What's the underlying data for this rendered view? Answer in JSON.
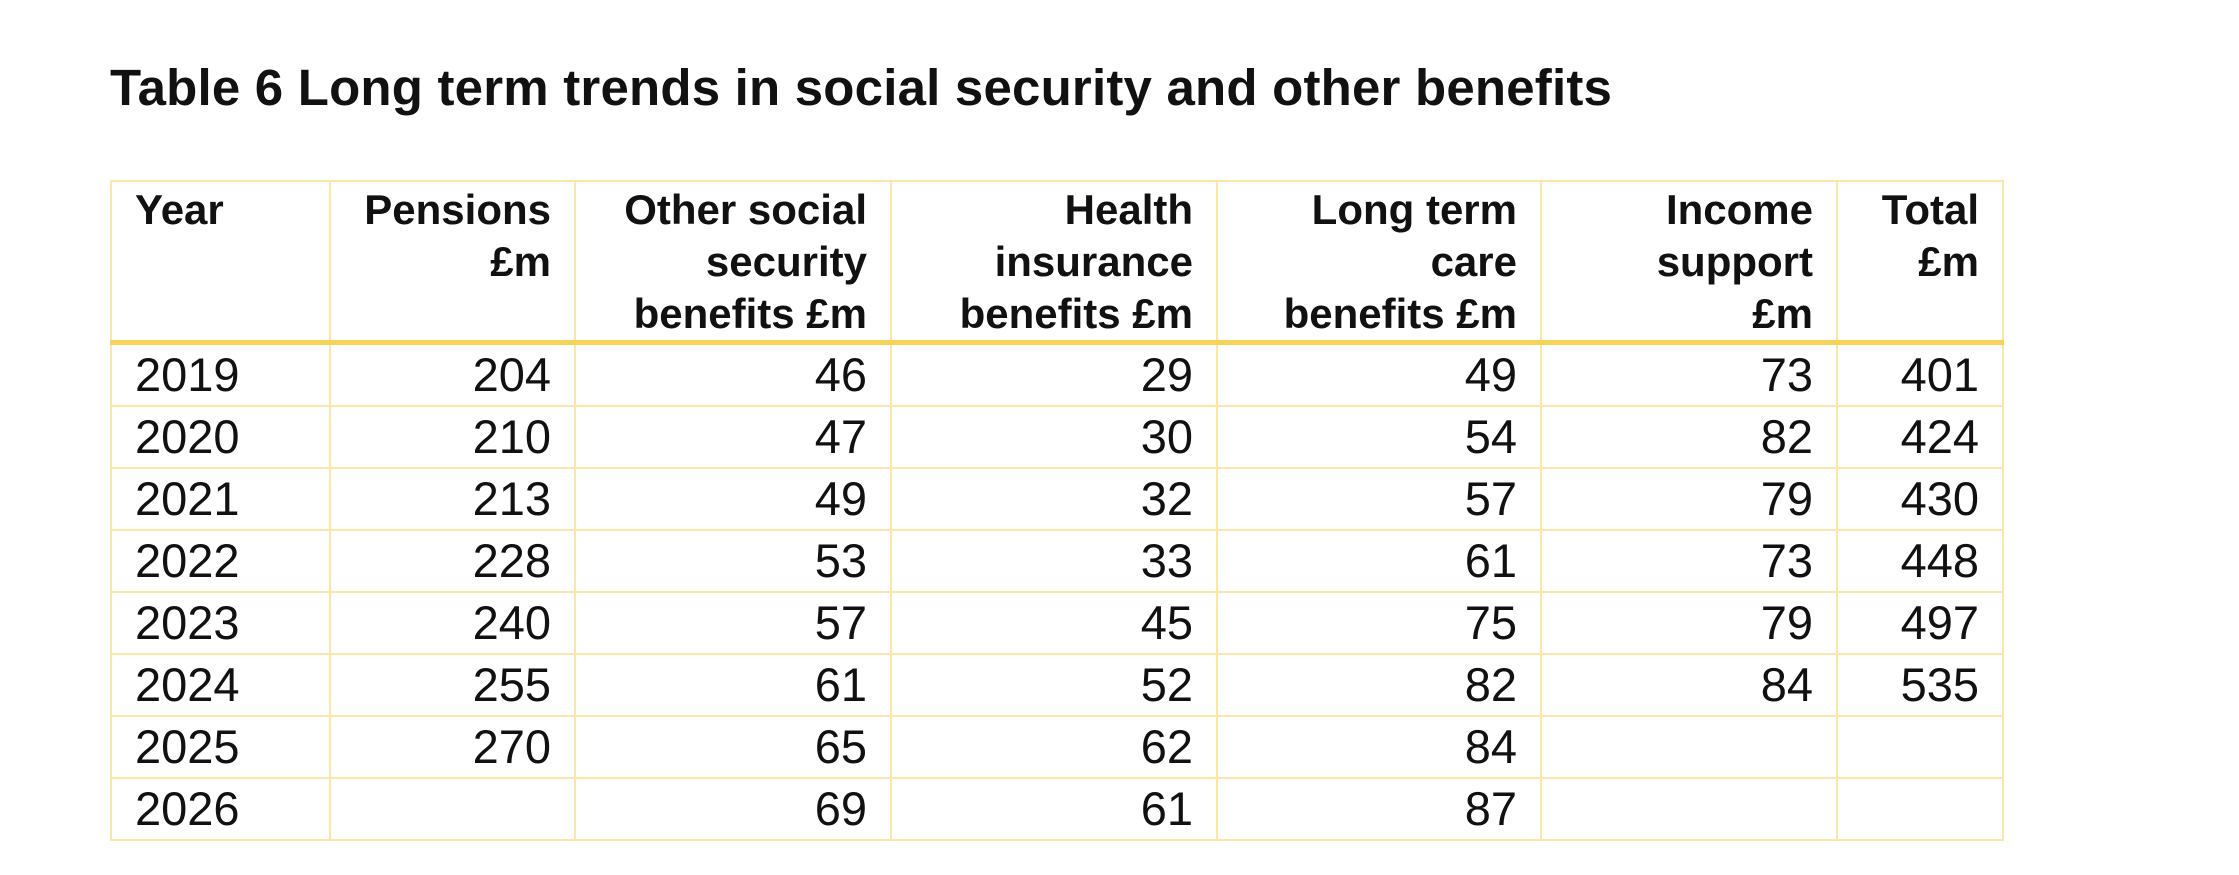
{
  "title": "Table 6 Long term trends in social security and other benefits",
  "table": {
    "headers": [
      [
        "Year"
      ],
      [
        "Pensions",
        "£m"
      ],
      [
        "Other social",
        "security",
        "benefits £m"
      ],
      [
        "Health",
        "insurance",
        "benefits £m"
      ],
      [
        "Long term",
        "care",
        "benefits £m"
      ],
      [
        "Income",
        "support",
        "£m"
      ],
      [
        "Total",
        "£m"
      ]
    ],
    "rows": [
      [
        "2019",
        "204",
        "46",
        "29",
        "49",
        "73",
        "401"
      ],
      [
        "2020",
        "210",
        "47",
        "30",
        "54",
        "82",
        "424"
      ],
      [
        "2021",
        "213",
        "49",
        "32",
        "57",
        "79",
        "430"
      ],
      [
        "2022",
        "228",
        "53",
        "33",
        "61",
        "73",
        "448"
      ],
      [
        "2023",
        "240",
        "57",
        "45",
        "75",
        "79",
        "497"
      ],
      [
        "2024",
        "255",
        "61",
        "52",
        "82",
        "84",
        "535"
      ],
      [
        "2025",
        "270",
        "65",
        "62",
        "84",
        "",
        ""
      ],
      [
        "2026",
        "",
        "69",
        "61",
        "87",
        "",
        ""
      ]
    ]
  },
  "colors": {
    "grid_line": "#fde7a6",
    "header_rule": "#f7d35a",
    "text": "#111111"
  }
}
